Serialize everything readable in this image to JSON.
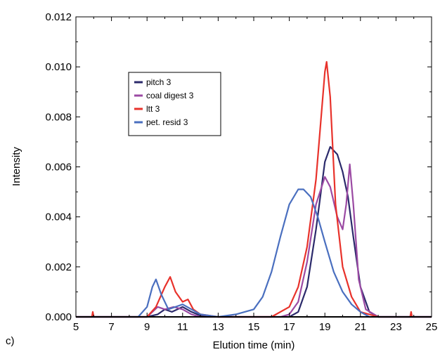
{
  "panel_label": "c)",
  "chart_data": {
    "type": "line",
    "title": "",
    "xlabel": "Elution time (min)",
    "ylabel": "Intensity",
    "xlim": [
      5,
      25
    ],
    "ylim": [
      0,
      0.012
    ],
    "x_ticks": [
      5,
      7,
      9,
      11,
      13,
      15,
      17,
      19,
      21,
      23,
      25
    ],
    "y_ticks": [
      "0.000",
      "0.002",
      "0.004",
      "0.006",
      "0.008",
      "0.010",
      "0.012"
    ],
    "grid": false,
    "legend_position": "upper-left",
    "series": [
      {
        "name": "pitch 3",
        "color": "#2b2a6b",
        "points": [
          [
            5,
            0
          ],
          [
            9,
            0
          ],
          [
            9.6,
            0.0001
          ],
          [
            10,
            0.0003
          ],
          [
            10.4,
            0.0002
          ],
          [
            11,
            0.0004
          ],
          [
            11.5,
            0.0002
          ],
          [
            12,
            5e-05
          ],
          [
            13,
            0
          ],
          [
            17,
            0
          ],
          [
            17.5,
            0.0002
          ],
          [
            18,
            0.0012
          ],
          [
            18.5,
            0.0035
          ],
          [
            19,
            0.0062
          ],
          [
            19.3,
            0.0068
          ],
          [
            19.7,
            0.0065
          ],
          [
            20,
            0.0058
          ],
          [
            20.3,
            0.0048
          ],
          [
            20.6,
            0.0032
          ],
          [
            21,
            0.0012
          ],
          [
            21.5,
            0.0002
          ],
          [
            22,
            0
          ],
          [
            25,
            0
          ]
        ]
      },
      {
        "name": "coal digest 3",
        "color": "#9b4aa3",
        "points": [
          [
            5,
            0
          ],
          [
            9,
            0
          ],
          [
            9.3,
            0.0002
          ],
          [
            9.6,
            0.0004
          ],
          [
            10,
            0.0003
          ],
          [
            10.5,
            0.0004
          ],
          [
            11,
            0.0003
          ],
          [
            11.5,
            0.0001
          ],
          [
            12,
            0
          ],
          [
            16.5,
            0
          ],
          [
            17,
            0.0001
          ],
          [
            17.5,
            0.0006
          ],
          [
            18,
            0.0022
          ],
          [
            18.5,
            0.0045
          ],
          [
            19,
            0.0056
          ],
          [
            19.3,
            0.0052
          ],
          [
            19.7,
            0.004
          ],
          [
            20,
            0.0035
          ],
          [
            20.2,
            0.0045
          ],
          [
            20.4,
            0.0061
          ],
          [
            20.6,
            0.0045
          ],
          [
            20.9,
            0.0015
          ],
          [
            21.3,
            0.0003
          ],
          [
            22,
            0
          ],
          [
            25,
            0
          ]
        ]
      },
      {
        "name": "ltt 3",
        "color": "#e8322b",
        "points": [
          [
            5,
            0
          ],
          [
            5.9,
            0
          ],
          [
            5.95,
            0.0002
          ],
          [
            6,
            0
          ],
          [
            9,
            0
          ],
          [
            9.5,
            0.0004
          ],
          [
            10,
            0.0012
          ],
          [
            10.3,
            0.0016
          ],
          [
            10.6,
            0.001
          ],
          [
            11,
            0.0006
          ],
          [
            11.3,
            0.0007
          ],
          [
            11.6,
            0.0003
          ],
          [
            12,
            0.0001
          ],
          [
            13,
            0
          ],
          [
            16,
            0
          ],
          [
            17,
            0.0004
          ],
          [
            17.5,
            0.0012
          ],
          [
            18,
            0.0028
          ],
          [
            18.5,
            0.0055
          ],
          [
            19,
            0.0098
          ],
          [
            19.1,
            0.0102
          ],
          [
            19.3,
            0.0088
          ],
          [
            19.6,
            0.0045
          ],
          [
            20,
            0.002
          ],
          [
            20.5,
            0.0008
          ],
          [
            21,
            0.0002
          ],
          [
            22,
            0
          ],
          [
            23.8,
            0
          ],
          [
            23.85,
            0.0002
          ],
          [
            23.9,
            0
          ],
          [
            25,
            0
          ]
        ]
      },
      {
        "name": "pet. resid 3",
        "color": "#4a6fbf",
        "points": [
          [
            5,
            0
          ],
          [
            8.5,
            0
          ],
          [
            9,
            0.0004
          ],
          [
            9.3,
            0.0012
          ],
          [
            9.5,
            0.0015
          ],
          [
            9.8,
            0.0009
          ],
          [
            10.2,
            0.0003
          ],
          [
            11,
            0.0005
          ],
          [
            11.5,
            0.0003
          ],
          [
            12,
            0.0001
          ],
          [
            13,
            0
          ],
          [
            14,
            0.0001
          ],
          [
            15,
            0.0003
          ],
          [
            15.5,
            0.0008
          ],
          [
            16,
            0.0018
          ],
          [
            16.5,
            0.0032
          ],
          [
            17,
            0.0045
          ],
          [
            17.5,
            0.0051
          ],
          [
            17.8,
            0.0051
          ],
          [
            18.2,
            0.0048
          ],
          [
            18.6,
            0.004
          ],
          [
            19,
            0.003
          ],
          [
            19.5,
            0.0018
          ],
          [
            20,
            0.001
          ],
          [
            20.5,
            0.0005
          ],
          [
            21,
            0.0002
          ],
          [
            21.5,
            0
          ],
          [
            25,
            0
          ]
        ]
      }
    ]
  }
}
